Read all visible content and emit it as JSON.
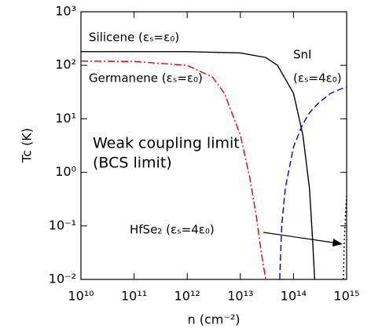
{
  "chart_data": {
    "type": "line",
    "x_label": "n (cm⁻²)",
    "y_label": "Tc (K)",
    "xscale": "log",
    "yscale": "log",
    "xlim": [
      10000000000.0,
      1000000000000000.0
    ],
    "xticks": [
      {
        "value": 10000000000.0,
        "label": "10¹⁰"
      },
      {
        "value": 100000000000.0,
        "label": "10¹¹"
      },
      {
        "value": 1000000000000.0,
        "label": "10¹²"
      },
      {
        "value": 10000000000000.0,
        "label": "10¹³"
      },
      {
        "value": 100000000000000.0,
        "label": "10¹⁴"
      },
      {
        "value": 1000000000000000.0,
        "label": "10¹⁵"
      }
    ],
    "ylim": [
      0.01,
      1000
    ],
    "yticks": [
      {
        "value": 0.01,
        "label": "10⁻²"
      },
      {
        "value": 0.1,
        "label": "10⁻¹"
      },
      {
        "value": 1,
        "label": "10⁰"
      },
      {
        "value": 10,
        "label": "10¹"
      },
      {
        "value": 100,
        "label": "10²"
      },
      {
        "value": 1000,
        "label": "10³"
      }
    ],
    "series": [
      {
        "name": "Silicene (εₛ=ε₀)",
        "color": "#000000",
        "linestyle": "solid",
        "x": [
          10000000000.0,
          1000000000000.0,
          10000000000000.0,
          30000000000000.0,
          50000000000000.0,
          100000000000000.0,
          150000000000000.0,
          200000000000000.0,
          230000000000000.0,
          250000000000000.0
        ],
        "values": [
          180,
          180,
          170,
          140,
          100,
          30,
          5,
          0.5,
          0.05,
          0.01
        ]
      },
      {
        "name": "Germanene (εₛ=ε₀)",
        "color": "#e00000",
        "linestyle": "dashdot",
        "x": [
          10000000000.0,
          100000000000.0,
          1000000000000.0,
          3000000000000.0,
          5000000000000.0,
          10000000000000.0,
          15000000000000.0,
          20000000000000.0,
          25000000000000.0,
          30000000000000.0
        ],
        "values": [
          120,
          118,
          100,
          60,
          30,
          5,
          0.8,
          0.15,
          0.03,
          0.01
        ]
      },
      {
        "name": "SnI",
        "color": "#0000cc",
        "linestyle": "dashed",
        "x": [
          55000000000000.0,
          60000000000000.0,
          70000000000000.0,
          100000000000000.0,
          150000000000000.0,
          200000000000000.0,
          300000000000000.0,
          500000000000000.0,
          1000000000000000.0
        ],
        "values": [
          0.01,
          0.1,
          0.5,
          3,
          8,
          13,
          20,
          30,
          40
        ]
      },
      {
        "name": "HfSe₂ (εₛ=4ε₀)",
        "color": "#000000",
        "linestyle": "dotted",
        "x": [
          870000000000000.0,
          900000000000000.0,
          950000000000000.0,
          1000000000000000.0
        ],
        "values": [
          0.01,
          0.05,
          0.15,
          0.4
        ]
      }
    ],
    "annotations": [
      "(εₛ=4ε₀)",
      "Weak coupling limit",
      "(BCS limit)"
    ]
  }
}
